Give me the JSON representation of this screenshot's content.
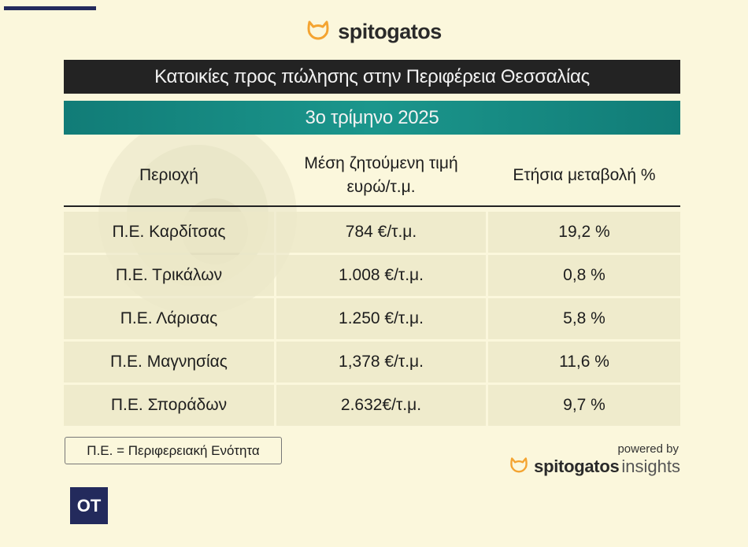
{
  "brand": {
    "name": "spitogatos",
    "icon": "cat-head-icon",
    "accent_color": "#f4a431"
  },
  "title": "Κατοικίες προς πώλησης στην Περιφέρεια Θεσσαλίας",
  "subtitle": "3ο τρίμηνο 2025",
  "table": {
    "headers": {
      "region": "Περιοχή",
      "price_line1": "Μέση ζητούμενη τιμή",
      "price_line2": "ευρώ/τ.μ.",
      "change": "Ετήσια μεταβολή %"
    },
    "rows": [
      {
        "region": "Π.Ε. Καρδίτσας",
        "price": "784 €/τ.μ.",
        "change": "19,2 %"
      },
      {
        "region": "Π.Ε. Τρικάλων",
        "price": "1.008 €/τ.μ.",
        "change": "0,8 %"
      },
      {
        "region": "Π.Ε. Λάρισας",
        "price": "1.250 €/τ.μ.",
        "change": "5,8 %"
      },
      {
        "region": "Π.Ε. Μαγνησίας",
        "price": "1,378 €/τ.μ.",
        "change": "11,6 %"
      },
      {
        "region": "Π.Ε. Σποράδων",
        "price": "2.632€/τ.μ.",
        "change": "9,7 %"
      }
    ]
  },
  "footnote": "Π.Ε. = Περιφερειακή Ενότητα",
  "footer": {
    "powered_by": "powered by",
    "brand_name": "spitogatos",
    "brand_suffix": "insights"
  },
  "badge": "OT",
  "colors": {
    "background": "#fbf7dc",
    "title_bar": "#232323",
    "subtitle_bar": "#1b968c",
    "badge": "#232a5c"
  }
}
